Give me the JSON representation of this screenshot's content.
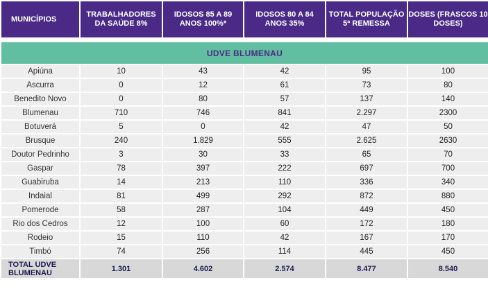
{
  "headers": [
    "MUNICÍPIOS",
    "TRABALHADORES DA SAÚDE 8%",
    "IDOSOS 85 A 89 ANOS 100%*",
    "IDOSOS 80 A 84 ANOS 35%",
    "TOTAL POPULAÇÃO 5ª REMESSA",
    "DOSES (FRASCOS 10 DOSES)"
  ],
  "region": "UDVE BLUMENAU",
  "rows": [
    [
      "Apiúna",
      "10",
      "43",
      "42",
      "95",
      "100"
    ],
    [
      "Ascurra",
      "0",
      "12",
      "61",
      "73",
      "80"
    ],
    [
      "Benedito Novo",
      "0",
      "80",
      "57",
      "137",
      "140"
    ],
    [
      "Blumenau",
      "710",
      "746",
      "841",
      "2.297",
      "2300"
    ],
    [
      "Botuverá",
      "5",
      "0",
      "42",
      "47",
      "50"
    ],
    [
      "Brusque",
      "240",
      "1.829",
      "555",
      "2.625",
      "2630"
    ],
    [
      "Doutor Pedrinho",
      "3",
      "30",
      "33",
      "65",
      "70"
    ],
    [
      "Gaspar",
      "78",
      "397",
      "222",
      "697",
      "700"
    ],
    [
      "Guabiruba",
      "14",
      "213",
      "110",
      "336",
      "340"
    ],
    [
      "Indaial",
      "81",
      "499",
      "292",
      "872",
      "880"
    ],
    [
      "Pomerode",
      "58",
      "287",
      "104",
      "449",
      "450"
    ],
    [
      "Rio dos Cedros",
      "12",
      "100",
      "60",
      "172",
      "180"
    ],
    [
      "Rodeio",
      "15",
      "110",
      "42",
      "167",
      "170"
    ],
    [
      "Timbó",
      "74",
      "256",
      "114",
      "445",
      "450"
    ]
  ],
  "total": [
    "TOTAL UDVE BLUMENAU",
    "1.301",
    "4.602",
    "2.574",
    "8.477",
    "8.540"
  ],
  "colors": {
    "header_bg": "#4a2a86",
    "region_bg": "#62bea0",
    "row_bg": "#eeeeee",
    "total_bg": "#d8d8d8"
  }
}
